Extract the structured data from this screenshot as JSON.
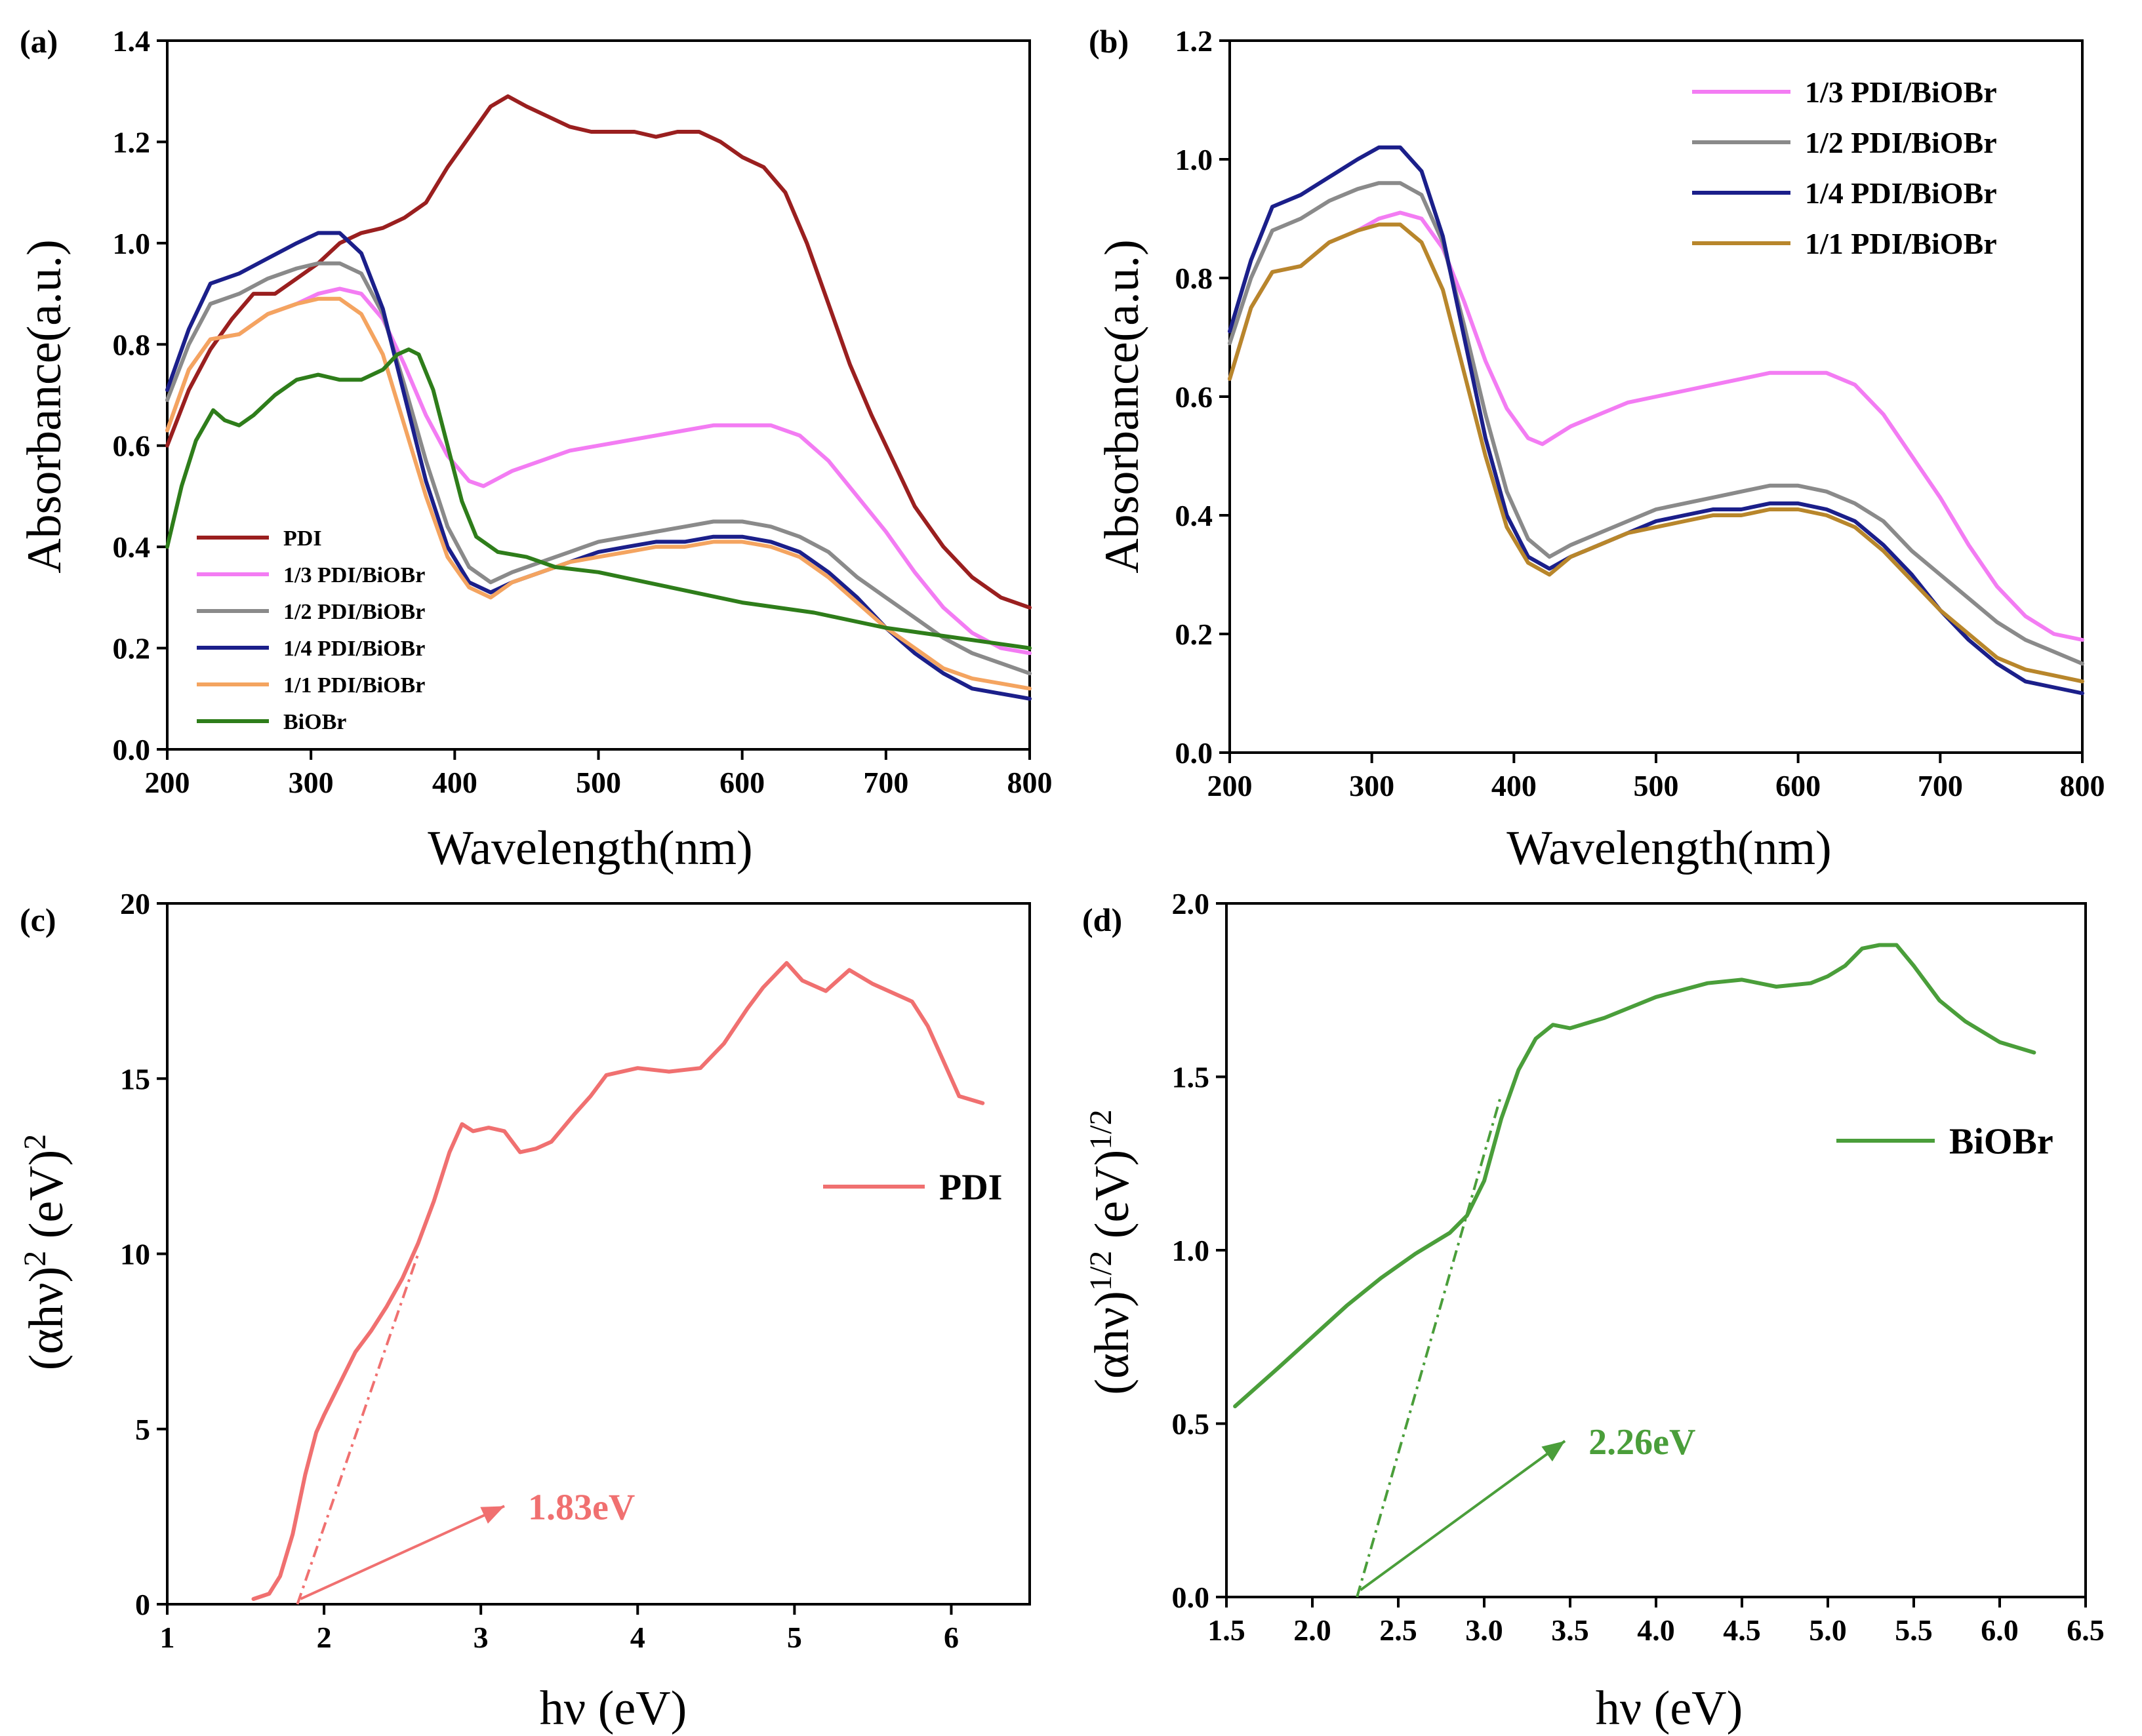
{
  "chart_data": [
    {
      "panel": "(a)",
      "type": "line",
      "xlabel": "Wavelength(nm)",
      "ylabel": "Absorbance(a.u.)",
      "xlim": [
        200,
        800
      ],
      "ylim": [
        0,
        1.4
      ],
      "xticks": [
        200,
        300,
        400,
        500,
        600,
        700,
        800
      ],
      "yticks": [
        0.0,
        0.2,
        0.4,
        0.6,
        0.8,
        1.0,
        1.2,
        1.4
      ],
      "xtick_labels": [
        "200",
        "300",
        "400",
        "500",
        "600",
        "700",
        "800"
      ],
      "ytick_labels": [
        "0.0",
        "0.2",
        "0.4",
        "0.6",
        "0.8",
        "1.0",
        "1.2",
        "1.4"
      ],
      "legend": "bottom-left",
      "series": [
        {
          "name": "PDI",
          "color": "#9a1f1f",
          "x": [
            200,
            215,
            230,
            245,
            260,
            275,
            290,
            305,
            320,
            335,
            350,
            365,
            380,
            395,
            410,
            425,
            437,
            450,
            465,
            480,
            495,
            510,
            525,
            540,
            555,
            570,
            585,
            600,
            615,
            630,
            645,
            660,
            675,
            690,
            705,
            720,
            740,
            760,
            780,
            800
          ],
          "y": [
            0.6,
            0.71,
            0.79,
            0.85,
            0.9,
            0.9,
            0.93,
            0.96,
            1.0,
            1.02,
            1.03,
            1.05,
            1.08,
            1.15,
            1.21,
            1.27,
            1.29,
            1.27,
            1.25,
            1.23,
            1.22,
            1.22,
            1.22,
            1.21,
            1.22,
            1.22,
            1.2,
            1.17,
            1.15,
            1.1,
            1.0,
            0.88,
            0.76,
            0.66,
            0.57,
            0.48,
            0.4,
            0.34,
            0.3,
            0.28
          ]
        },
        {
          "name": "1/3 PDI/BiOBr",
          "color": "#f37cf3",
          "x": [
            200,
            215,
            230,
            250,
            270,
            290,
            305,
            320,
            335,
            350,
            365,
            380,
            395,
            410,
            420,
            440,
            460,
            480,
            500,
            520,
            540,
            560,
            580,
            600,
            620,
            640,
            660,
            680,
            700,
            720,
            740,
            760,
            780,
            800
          ],
          "y": [
            0.63,
            0.75,
            0.81,
            0.82,
            0.86,
            0.88,
            0.9,
            0.91,
            0.9,
            0.85,
            0.76,
            0.66,
            0.58,
            0.53,
            0.52,
            0.55,
            0.57,
            0.59,
            0.6,
            0.61,
            0.62,
            0.63,
            0.64,
            0.64,
            0.64,
            0.62,
            0.57,
            0.5,
            0.43,
            0.35,
            0.28,
            0.23,
            0.2,
            0.19
          ]
        },
        {
          "name": "1/2 PDI/BiOBr",
          "color": "#8a8a8a",
          "x": [
            200,
            215,
            230,
            250,
            270,
            290,
            305,
            320,
            335,
            350,
            365,
            380,
            395,
            410,
            425,
            440,
            460,
            480,
            500,
            520,
            540,
            560,
            580,
            600,
            620,
            640,
            660,
            680,
            700,
            720,
            740,
            760,
            780,
            800
          ],
          "y": [
            0.69,
            0.8,
            0.88,
            0.9,
            0.93,
            0.95,
            0.96,
            0.96,
            0.94,
            0.86,
            0.72,
            0.57,
            0.44,
            0.36,
            0.33,
            0.35,
            0.37,
            0.39,
            0.41,
            0.42,
            0.43,
            0.44,
            0.45,
            0.45,
            0.44,
            0.42,
            0.39,
            0.34,
            0.3,
            0.26,
            0.22,
            0.19,
            0.17,
            0.15
          ]
        },
        {
          "name": "1/4 PDI/BiOBr",
          "color": "#1b1f8a",
          "x": [
            200,
            215,
            230,
            250,
            270,
            290,
            305,
            320,
            335,
            350,
            365,
            380,
            395,
            410,
            425,
            440,
            460,
            480,
            500,
            520,
            540,
            560,
            580,
            600,
            620,
            640,
            660,
            680,
            700,
            720,
            740,
            760,
            780,
            800
          ],
          "y": [
            0.71,
            0.83,
            0.92,
            0.94,
            0.97,
            1.0,
            1.02,
            1.02,
            0.98,
            0.87,
            0.7,
            0.53,
            0.4,
            0.33,
            0.31,
            0.33,
            0.35,
            0.37,
            0.39,
            0.4,
            0.41,
            0.41,
            0.42,
            0.42,
            0.41,
            0.39,
            0.35,
            0.3,
            0.24,
            0.19,
            0.15,
            0.12,
            0.11,
            0.1
          ]
        },
        {
          "name": "1/1 PDI/BiOBr",
          "color": "#f4a460",
          "x": [
            200,
            215,
            230,
            250,
            270,
            290,
            305,
            320,
            335,
            350,
            365,
            380,
            395,
            410,
            425,
            440,
            460,
            480,
            500,
            520,
            540,
            560,
            580,
            600,
            620,
            640,
            660,
            680,
            700,
            720,
            740,
            760,
            780,
            800
          ],
          "y": [
            0.63,
            0.75,
            0.81,
            0.82,
            0.86,
            0.88,
            0.89,
            0.89,
            0.86,
            0.78,
            0.64,
            0.5,
            0.38,
            0.32,
            0.3,
            0.33,
            0.35,
            0.37,
            0.38,
            0.39,
            0.4,
            0.4,
            0.41,
            0.41,
            0.4,
            0.38,
            0.34,
            0.29,
            0.24,
            0.2,
            0.16,
            0.14,
            0.13,
            0.12
          ]
        },
        {
          "name": "BiOBr",
          "color": "#2e7d1a",
          "x": [
            200,
            210,
            220,
            232,
            240,
            250,
            260,
            275,
            290,
            305,
            320,
            335,
            350,
            360,
            368,
            375,
            385,
            395,
            405,
            415,
            430,
            450,
            470,
            500,
            550,
            600,
            650,
            700,
            750,
            800
          ],
          "y": [
            0.4,
            0.52,
            0.61,
            0.67,
            0.65,
            0.64,
            0.66,
            0.7,
            0.73,
            0.74,
            0.73,
            0.73,
            0.75,
            0.78,
            0.79,
            0.78,
            0.71,
            0.6,
            0.49,
            0.42,
            0.39,
            0.38,
            0.36,
            0.35,
            0.32,
            0.29,
            0.27,
            0.24,
            0.22,
            0.2
          ]
        }
      ]
    },
    {
      "panel": "(b)",
      "type": "line",
      "xlabel": "Wavelength(nm)",
      "ylabel": "Absorbance(a.u.)",
      "xlim": [
        200,
        800
      ],
      "ylim": [
        0,
        1.2
      ],
      "xticks": [
        200,
        300,
        400,
        500,
        600,
        700,
        800
      ],
      "yticks": [
        0.0,
        0.2,
        0.4,
        0.6,
        0.8,
        1.0,
        1.2
      ],
      "xtick_labels": [
        "200",
        "300",
        "400",
        "500",
        "600",
        "700",
        "800"
      ],
      "ytick_labels": [
        "0.0",
        "0.2",
        "0.4",
        "0.6",
        "0.8",
        "1.0",
        "1.2"
      ],
      "legend": "top-right",
      "series": [
        {
          "name": "1/3 PDI/BiOBr",
          "color": "#f37cf3",
          "x": [
            200,
            215,
            230,
            250,
            270,
            290,
            305,
            320,
            335,
            350,
            365,
            380,
            395,
            410,
            420,
            440,
            460,
            480,
            500,
            520,
            540,
            560,
            580,
            600,
            620,
            640,
            660,
            680,
            700,
            720,
            740,
            760,
            780,
            800
          ],
          "y": [
            0.63,
            0.75,
            0.81,
            0.82,
            0.86,
            0.88,
            0.9,
            0.91,
            0.9,
            0.85,
            0.76,
            0.66,
            0.58,
            0.53,
            0.52,
            0.55,
            0.57,
            0.59,
            0.6,
            0.61,
            0.62,
            0.63,
            0.64,
            0.64,
            0.64,
            0.62,
            0.57,
            0.5,
            0.43,
            0.35,
            0.28,
            0.23,
            0.2,
            0.19
          ]
        },
        {
          "name": "1/2 PDI/BiOBr",
          "color": "#8a8a8a",
          "x": [
            200,
            215,
            230,
            250,
            270,
            290,
            305,
            320,
            335,
            350,
            365,
            380,
            395,
            410,
            425,
            440,
            460,
            480,
            500,
            520,
            540,
            560,
            580,
            600,
            620,
            640,
            660,
            680,
            700,
            720,
            740,
            760,
            780,
            800
          ],
          "y": [
            0.69,
            0.8,
            0.88,
            0.9,
            0.93,
            0.95,
            0.96,
            0.96,
            0.94,
            0.86,
            0.72,
            0.57,
            0.44,
            0.36,
            0.33,
            0.35,
            0.37,
            0.39,
            0.41,
            0.42,
            0.43,
            0.44,
            0.45,
            0.45,
            0.44,
            0.42,
            0.39,
            0.34,
            0.3,
            0.26,
            0.22,
            0.19,
            0.17,
            0.15
          ]
        },
        {
          "name": "1/4 PDI/BiOBr",
          "color": "#1b1f8a",
          "x": [
            200,
            215,
            230,
            250,
            270,
            290,
            305,
            320,
            335,
            350,
            365,
            380,
            395,
            410,
            425,
            440,
            460,
            480,
            500,
            520,
            540,
            560,
            580,
            600,
            620,
            640,
            660,
            680,
            700,
            720,
            740,
            760,
            780,
            800
          ],
          "y": [
            0.71,
            0.83,
            0.92,
            0.94,
            0.97,
            1.0,
            1.02,
            1.02,
            0.98,
            0.87,
            0.7,
            0.53,
            0.4,
            0.33,
            0.31,
            0.33,
            0.35,
            0.37,
            0.39,
            0.4,
            0.41,
            0.41,
            0.42,
            0.42,
            0.41,
            0.39,
            0.35,
            0.3,
            0.24,
            0.19,
            0.15,
            0.12,
            0.11,
            0.1
          ]
        },
        {
          "name": "1/1 PDI/BiOBr",
          "color": "#b8862b",
          "x": [
            200,
            215,
            230,
            250,
            270,
            290,
            305,
            320,
            335,
            350,
            365,
            380,
            395,
            410,
            425,
            440,
            460,
            480,
            500,
            520,
            540,
            560,
            580,
            600,
            620,
            640,
            660,
            680,
            700,
            720,
            740,
            760,
            780,
            800
          ],
          "y": [
            0.63,
            0.75,
            0.81,
            0.82,
            0.86,
            0.88,
            0.89,
            0.89,
            0.86,
            0.78,
            0.64,
            0.5,
            0.38,
            0.32,
            0.3,
            0.33,
            0.35,
            0.37,
            0.38,
            0.39,
            0.4,
            0.4,
            0.41,
            0.41,
            0.4,
            0.38,
            0.34,
            0.29,
            0.24,
            0.2,
            0.16,
            0.14,
            0.13,
            0.12
          ]
        }
      ]
    },
    {
      "panel": "(c)",
      "type": "line",
      "xlabel": "hν (eV)",
      "ylabel": "(αhν)² (eV)²",
      "xlim": [
        1,
        6.5
      ],
      "ylim": [
        0,
        20
      ],
      "xticks": [
        1,
        2,
        3,
        4,
        5,
        6
      ],
      "yticks": [
        0,
        5,
        10,
        15,
        20
      ],
      "xtick_labels": [
        "1",
        "2",
        "3",
        "4",
        "5",
        "6"
      ],
      "ytick_labels": [
        "0",
        "5",
        "10",
        "15",
        "20"
      ],
      "legend": "right",
      "annotation": {
        "text": "1.83eV",
        "color": "#f07070",
        "from": [
          1.85,
          0.15
        ],
        "to": [
          3.15,
          2.8
        ]
      },
      "tangent": {
        "from": [
          1.83,
          0
        ],
        "to": [
          2.6,
          10
        ]
      },
      "series": [
        {
          "name": "PDI",
          "color": "#f07070",
          "x": [
            1.55,
            1.65,
            1.72,
            1.8,
            1.88,
            1.95,
            2.0,
            2.1,
            2.2,
            2.3,
            2.4,
            2.5,
            2.6,
            2.7,
            2.8,
            2.88,
            2.95,
            3.05,
            3.15,
            3.25,
            3.35,
            3.45,
            3.6,
            3.7,
            3.8,
            4.0,
            4.2,
            4.4,
            4.55,
            4.7,
            4.8,
            4.95,
            5.05,
            5.2,
            5.35,
            5.5,
            5.65,
            5.75,
            5.85,
            5.95,
            6.05,
            6.2
          ],
          "y": [
            0.15,
            0.3,
            0.8,
            2.0,
            3.7,
            4.9,
            5.4,
            6.3,
            7.2,
            7.8,
            8.5,
            9.3,
            10.3,
            11.5,
            12.9,
            13.7,
            13.5,
            13.6,
            13.5,
            12.9,
            13.0,
            13.2,
            14.0,
            14.5,
            15.1,
            15.3,
            15.2,
            15.3,
            16.0,
            17.0,
            17.6,
            18.3,
            17.8,
            17.5,
            18.1,
            17.7,
            17.4,
            17.2,
            16.5,
            15.5,
            14.5,
            14.3
          ]
        }
      ]
    },
    {
      "panel": "(d)",
      "type": "line",
      "xlabel": "hν (eV)",
      "ylabel": "(αhν)^1/2 (eV)^1/2",
      "xlim": [
        1.5,
        6.5
      ],
      "ylim": [
        0,
        2.0
      ],
      "xticks": [
        1.5,
        2.0,
        2.5,
        3.0,
        3.5,
        4.0,
        4.5,
        5.0,
        5.5,
        6.0,
        6.5
      ],
      "yticks": [
        0.0,
        0.5,
        1.0,
        1.5,
        2.0
      ],
      "xtick_labels": [
        "1.5",
        "2.0",
        "2.5",
        "3.0",
        "3.5",
        "4.0",
        "4.5",
        "5.0",
        "5.5",
        "6.0",
        "6.5"
      ],
      "ytick_labels": [
        "0.0",
        "0.5",
        "1.0",
        "1.5",
        "2.0"
      ],
      "legend": "right",
      "annotation": {
        "text": "2.26eV",
        "color": "#4a9e3a",
        "from": [
          2.28,
          0.02
        ],
        "to": [
          3.47,
          0.45
        ]
      },
      "tangent": {
        "from": [
          2.26,
          0
        ],
        "to": [
          3.1,
          1.45
        ]
      },
      "series": [
        {
          "name": "BiOBr",
          "color": "#4a9e3a",
          "x": [
            1.55,
            1.8,
            2.0,
            2.2,
            2.4,
            2.6,
            2.8,
            2.9,
            3.0,
            3.1,
            3.2,
            3.3,
            3.4,
            3.5,
            3.7,
            4.0,
            4.3,
            4.5,
            4.7,
            4.9,
            5.0,
            5.1,
            5.2,
            5.3,
            5.4,
            5.5,
            5.65,
            5.8,
            6.0,
            6.2
          ],
          "y": [
            0.55,
            0.66,
            0.75,
            0.84,
            0.92,
            0.99,
            1.05,
            1.1,
            1.2,
            1.38,
            1.52,
            1.61,
            1.65,
            1.64,
            1.67,
            1.73,
            1.77,
            1.78,
            1.76,
            1.77,
            1.79,
            1.82,
            1.87,
            1.88,
            1.88,
            1.82,
            1.72,
            1.66,
            1.6,
            1.57
          ]
        }
      ]
    }
  ]
}
